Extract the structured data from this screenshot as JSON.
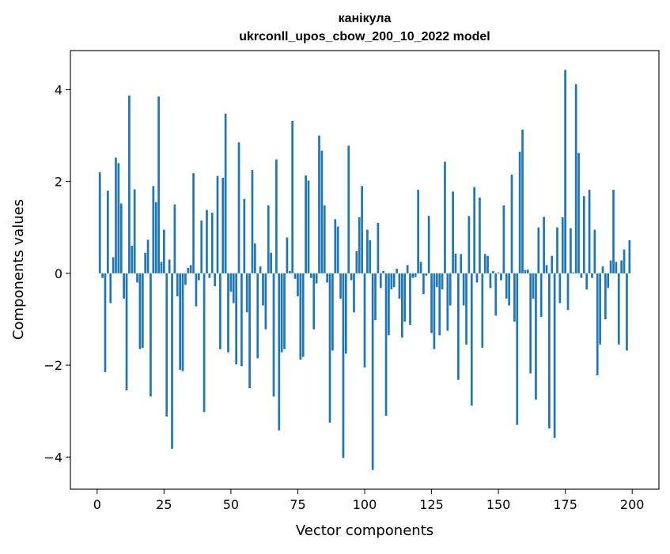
{
  "chart_data": {
    "type": "bar",
    "title_line1": "канікула",
    "title_line2": "ukrconll_upos_cbow_200_10_2022 model",
    "xlabel": "Vector components",
    "ylabel": "Components values",
    "xlim": [
      -10,
      210
    ],
    "ylim": [
      -4.7,
      4.85
    ],
    "xticks": [
      0,
      25,
      50,
      75,
      100,
      125,
      150,
      175,
      200
    ],
    "xtick_labels": [
      "0",
      "25",
      "50",
      "75",
      "100",
      "125",
      "150",
      "175",
      "200"
    ],
    "yticks": [
      -4,
      -2,
      0,
      2,
      4
    ],
    "ytick_labels": [
      "−4",
      "−2",
      "0",
      "2",
      "4"
    ],
    "grid": false,
    "bar_color": "#1f77b4",
    "x": [
      1,
      2,
      3,
      4,
      5,
      6,
      7,
      8,
      9,
      10,
      11,
      12,
      13,
      14,
      15,
      16,
      17,
      18,
      19,
      20,
      21,
      22,
      23,
      24,
      25,
      26,
      27,
      28,
      29,
      30,
      31,
      32,
      33,
      34,
      35,
      36,
      37,
      38,
      39,
      40,
      41,
      42,
      43,
      44,
      45,
      46,
      47,
      48,
      49,
      50,
      51,
      52,
      53,
      54,
      55,
      56,
      57,
      58,
      59,
      60,
      61,
      62,
      63,
      64,
      65,
      66,
      67,
      68,
      69,
      70,
      71,
      72,
      73,
      74,
      75,
      76,
      77,
      78,
      79,
      80,
      81,
      82,
      83,
      84,
      85,
      86,
      87,
      88,
      89,
      90,
      91,
      92,
      93,
      94,
      95,
      96,
      97,
      98,
      99,
      100,
      101,
      102,
      103,
      104,
      105,
      106,
      107,
      108,
      109,
      110,
      111,
      112,
      113,
      114,
      115,
      116,
      117,
      118,
      119,
      120,
      121,
      122,
      123,
      124,
      125,
      126,
      127,
      128,
      129,
      130,
      131,
      132,
      133,
      134,
      135,
      136,
      137,
      138,
      139,
      140,
      141,
      142,
      143,
      144,
      145,
      146,
      147,
      148,
      149,
      150,
      151,
      152,
      153,
      154,
      155,
      156,
      157,
      158,
      159,
      160,
      161,
      162,
      163,
      164,
      165,
      166,
      167,
      168,
      169,
      170,
      171,
      172,
      173,
      174,
      175,
      176,
      177,
      178,
      179,
      180,
      181,
      182,
      183,
      184,
      185,
      186,
      187,
      188,
      189,
      190,
      191,
      192,
      193,
      194,
      195,
      196,
      197,
      198,
      199
    ],
    "values": [
      2.2,
      -0.1,
      -2.15,
      1.8,
      -0.65,
      0.35,
      2.52,
      2.4,
      1.52,
      -0.55,
      -2.55,
      3.87,
      0.6,
      1.83,
      -0.2,
      -1.65,
      -1.62,
      0.45,
      0.73,
      -2.68,
      1.9,
      1.55,
      3.85,
      0.25,
      0.95,
      -3.12,
      0.3,
      -3.82,
      1.5,
      -0.5,
      -2.1,
      -2.13,
      -0.25,
      0.12,
      0.18,
      2.18,
      -0.72,
      -0.15,
      1.15,
      -3.02,
      1.38,
      -0.1,
      1.32,
      -0.28,
      2.12,
      -1.65,
      2.08,
      3.48,
      -1.72,
      -0.4,
      -0.65,
      -1.98,
      2.85,
      -2.02,
      1.62,
      -0.85,
      -2.5,
      2.25,
      0.65,
      -1.85,
      0.15,
      -0.7,
      -1.22,
      1.48,
      0.45,
      -2.68,
      2.48,
      -3.42,
      -1.72,
      -1.65,
      0.78,
      0.05,
      3.32,
      -0.12,
      -0.5,
      -1.88,
      -1.82,
      2.13,
      2.02,
      -0.1,
      -1.22,
      -0.22,
      3.0,
      2.67,
      1.48,
      -0.2,
      -3.25,
      -1.68,
      1.18,
      1.02,
      -0.55,
      -4.02,
      -1.75,
      2.78,
      -0.15,
      -0.85,
      0.48,
      1.22,
      1.9,
      -2.05,
      0.95,
      0.72,
      -4.28,
      -1.02,
      1.1,
      -0.32,
      0.05,
      -3.1,
      -1.35,
      -0.35,
      -0.3,
      0.1,
      -0.55,
      -1.4,
      -1.05,
      0.18,
      -1.12,
      -0.1,
      -0.08,
      1.82,
      0.25,
      -0.45,
      -0.05,
      1.25,
      -1.3,
      -1.65,
      -0.3,
      -1.35,
      -0.35,
      2.43,
      -1.25,
      -0.7,
      1.78,
      0.43,
      -2.32,
      0.42,
      -0.7,
      -1.55,
      1.25,
      -2.88,
      1.88,
      -0.2,
      1.65,
      -1.62,
      0.42,
      0.38,
      -0.32,
      0.05,
      -0.92,
      0.02,
      -0.15,
      1.48,
      -0.55,
      -0.7,
      2.15,
      -1.05,
      -3.3,
      2.65,
      3.13,
      0.07,
      0.08,
      -2.18,
      -0.55,
      -2.75,
      1.0,
      -0.95,
      1.23,
      0.18,
      -3.38,
      0.38,
      -3.58,
      1.0,
      -0.65,
      1.22,
      4.43,
      -0.8,
      0.98,
      0.02,
      4.12,
      2.62,
      -0.1,
      1.68,
      -0.35,
      1.82,
      -0.1,
      0.95,
      -2.22,
      -1.55,
      0.15,
      -1.0,
      -0.32,
      0.28,
      1.82,
      0.25,
      -1.55,
      0.28,
      0.52,
      -1.68,
      0.72
    ]
  }
}
